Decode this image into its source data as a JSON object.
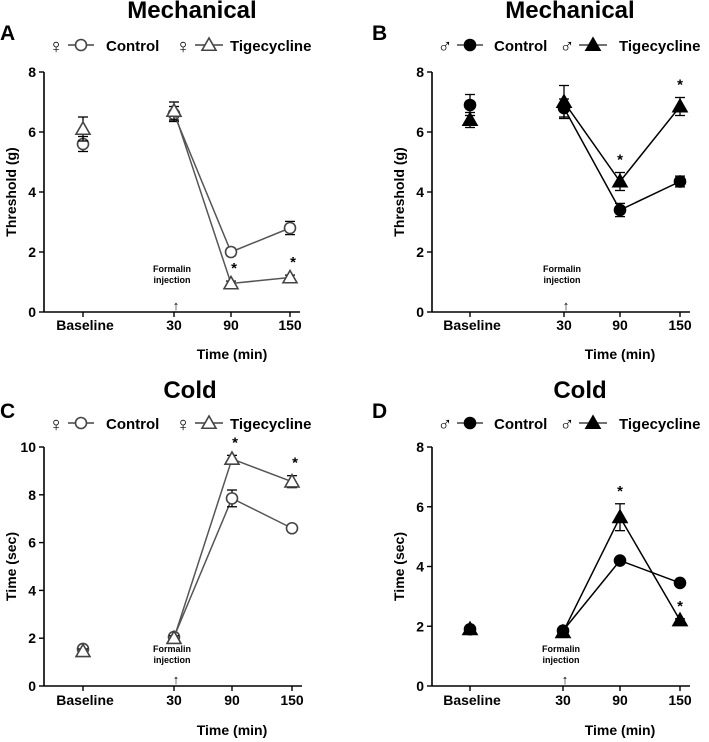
{
  "chart_data": [
    {
      "id": "A",
      "type": "line",
      "panel_label": "A",
      "title": "Mechanical",
      "sex": "female",
      "sex_symbol": "♀",
      "fill": "open",
      "xlabel": "Time (min)",
      "ylabel": "Threshold (g)",
      "ylim": [
        0,
        8
      ],
      "yticks": [
        0,
        2,
        4,
        6,
        8
      ],
      "categories": [
        "Baseline",
        "30",
        "90",
        "150"
      ],
      "annotation": {
        "line1": "Formalin",
        "line2": "injection",
        "arrow": "↑",
        "at": "30"
      },
      "series": [
        {
          "name": "Control",
          "marker": "circle",
          "values": [
            5.6,
            6.6,
            2.0,
            2.8
          ],
          "errors": [
            0.25,
            0.25,
            0.12,
            0.22
          ]
        },
        {
          "name": "Tigecycline",
          "marker": "triangle",
          "values": [
            6.1,
            6.7,
            0.95,
            1.15
          ],
          "errors": [
            0.4,
            0.3,
            0.08,
            0.08
          ]
        }
      ],
      "significance": [
        {
          "label": "*",
          "category": "90"
        },
        {
          "label": "*",
          "category": "150"
        }
      ]
    },
    {
      "id": "B",
      "type": "line",
      "panel_label": "B",
      "title": "Mechanical",
      "sex": "male",
      "sex_symbol": "♂",
      "fill": "filled",
      "xlabel": "Time (min)",
      "ylabel": "Threshold (g)",
      "ylim": [
        0,
        8
      ],
      "yticks": [
        0,
        2,
        4,
        6,
        8
      ],
      "categories": [
        "Baseline",
        "30",
        "90",
        "150"
      ],
      "annotation": {
        "line1": "Formalin",
        "line2": "injection",
        "arrow": "↑",
        "at": "30"
      },
      "series": [
        {
          "name": "Control",
          "marker": "circle",
          "values": [
            6.9,
            6.8,
            3.4,
            4.35
          ],
          "errors": [
            0.35,
            0.3,
            0.22,
            0.18
          ]
        },
        {
          "name": "Tigecycline",
          "marker": "triangle",
          "values": [
            6.4,
            7.0,
            4.35,
            6.85
          ],
          "errors": [
            0.25,
            0.55,
            0.3,
            0.3
          ]
        }
      ],
      "significance": [
        {
          "label": "*",
          "category": "90"
        },
        {
          "label": "*",
          "category": "150"
        }
      ]
    },
    {
      "id": "C",
      "type": "line",
      "panel_label": "C",
      "title": "Cold",
      "sex": "female",
      "sex_symbol": "♀",
      "fill": "open",
      "xlabel": "Time (min)",
      "ylabel": "Time (sec)",
      "ylim": [
        0,
        10
      ],
      "yticks": [
        0,
        2,
        4,
        6,
        8,
        10
      ],
      "categories": [
        "Baseline",
        "30",
        "90",
        "150"
      ],
      "annotation": {
        "line1": "Formalin",
        "line2": "injection",
        "arrow": "↑",
        "at": "30"
      },
      "series": [
        {
          "name": "Control",
          "marker": "circle",
          "values": [
            1.55,
            2.05,
            7.85,
            6.6
          ],
          "errors": [
            0.1,
            0.1,
            0.35,
            0.1
          ]
        },
        {
          "name": "Tigecycline",
          "marker": "triangle",
          "values": [
            1.45,
            2.0,
            9.5,
            8.55
          ],
          "errors": [
            0.1,
            0.1,
            0.15,
            0.25
          ]
        }
      ],
      "significance": [
        {
          "label": "*",
          "category": "90"
        },
        {
          "label": "*",
          "category": "150"
        }
      ]
    },
    {
      "id": "D",
      "type": "line",
      "panel_label": "D",
      "title": "Cold",
      "sex": "male",
      "sex_symbol": "♂",
      "fill": "filled",
      "xlabel": "Time (min)",
      "ylabel": "Time (sec)",
      "ylim": [
        0,
        8
      ],
      "yticks": [
        0,
        2,
        4,
        6,
        8
      ],
      "categories": [
        "Baseline",
        "30",
        "90",
        "150"
      ],
      "annotation": {
        "line1": "Formalin",
        "line2": "injection",
        "arrow": "↑",
        "at": "30"
      },
      "series": [
        {
          "name": "Control",
          "marker": "circle",
          "values": [
            1.9,
            1.85,
            4.2,
            3.45
          ],
          "errors": [
            0.05,
            0.05,
            0.05,
            0.05
          ]
        },
        {
          "name": "Tigecycline",
          "marker": "triangle",
          "values": [
            1.9,
            1.8,
            5.65,
            2.2
          ],
          "errors": [
            0.05,
            0.05,
            0.45,
            0.05
          ]
        }
      ],
      "significance": [
        {
          "label": "*",
          "category": "90"
        },
        {
          "label": "*",
          "category": "150"
        }
      ]
    }
  ]
}
